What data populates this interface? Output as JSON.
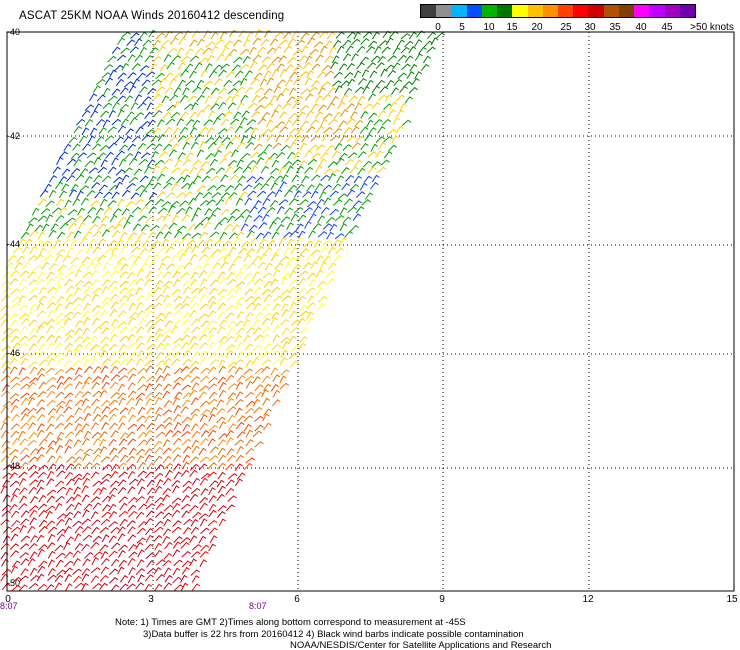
{
  "title": "ASCAT 25KM NOAA Winds 20160412 descending",
  "legend": {
    "labels": [
      "0",
      "5",
      "10",
      "15",
      "20",
      "25",
      "30",
      "35",
      "40",
      "45",
      ">50 knots"
    ],
    "colors": [
      "#404040",
      "#909090",
      "#00b4ff",
      "#0050ff",
      "#00b400",
      "#007800",
      "#ffff00",
      "#ffc000",
      "#ff9000",
      "#ff4000",
      "#ff0000",
      "#d00000",
      "#b05000",
      "#804000",
      "#ff00ff",
      "#c000ff",
      "#a000c0",
      "#7000b0"
    ]
  },
  "axes": {
    "lat_labels": [
      "-40",
      "-42",
      "-44",
      "-46",
      "-48",
      "-50"
    ],
    "lon_labels": [
      "0",
      "3",
      "6",
      "9",
      "12",
      "15"
    ]
  },
  "time_labels": [
    "8:07",
    "8:07"
  ],
  "notes": [
    "Note: 1) Times are GMT 2)Times along bottom correspond to measurement at -45S",
    "3)Data buffer is 22 hrs from 20160412 4) Black wind barbs indicate possible contamination",
    "NOAA/NESDIS/Center for Satellite Applications and Research"
  ]
}
